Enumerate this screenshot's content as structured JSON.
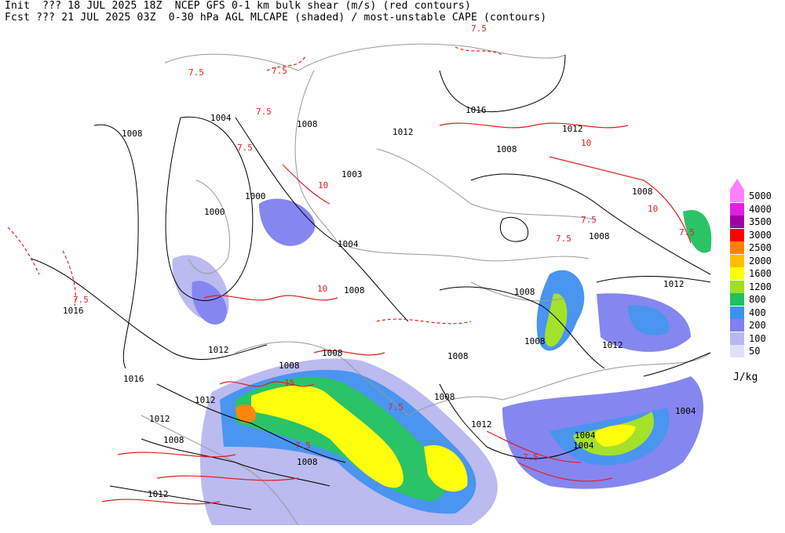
{
  "header": {
    "line1": "Init  ??? 18 JUL 2025 18Z  NCEP GFS 0-1 km bulk shear (m/s) (red contours)",
    "line2": "Fcst ??? 21 JUL 2025 03Z  0-30 hPa AGL MLCAPE (shaded) / most-unstable CAPE (contours)"
  },
  "legend": {
    "unit": "J/kg",
    "levels": [
      {
        "label": "5000",
        "color": "#ff80ff"
      },
      {
        "label": "4000",
        "color": "#e020e0"
      },
      {
        "label": "3500",
        "color": "#a000a0"
      },
      {
        "label": "3000",
        "color": "#ff0000"
      },
      {
        "label": "2500",
        "color": "#ff8000"
      },
      {
        "label": "2000",
        "color": "#ffc000"
      },
      {
        "label": "1600",
        "color": "#ffff00"
      },
      {
        "label": "1200",
        "color": "#a0e020"
      },
      {
        "label": "800",
        "color": "#20c060"
      },
      {
        "label": "400",
        "color": "#4090f0"
      },
      {
        "label": "200",
        "color": "#8080f0"
      },
      {
        "label": "100",
        "color": "#b8b8f0"
      },
      {
        "label": "50",
        "color": "#e0e0f8"
      }
    ]
  },
  "map": {
    "pressure_labels": [
      "1008",
      "1004",
      "1008",
      "1016",
      "1012",
      "1000",
      "1000",
      "1003",
      "1004",
      "1008",
      "1016",
      "1012",
      "1012",
      "1008",
      "1008",
      "1008",
      "1008",
      "1012",
      "1016",
      "1012",
      "1008",
      "1008",
      "1008",
      "1012",
      "1012",
      "1008",
      "1004",
      "1012",
      "1004",
      "1012",
      "1008",
      "1008",
      "1008",
      "1004"
    ],
    "shear_labels": [
      "7.5",
      "7.5",
      "7.5",
      "7.5",
      "7.5",
      "7.5",
      "7.5",
      "7.5",
      "7.5",
      "15",
      "10",
      "10",
      "10",
      "10",
      "7.5",
      "7.5",
      "7.5"
    ]
  }
}
